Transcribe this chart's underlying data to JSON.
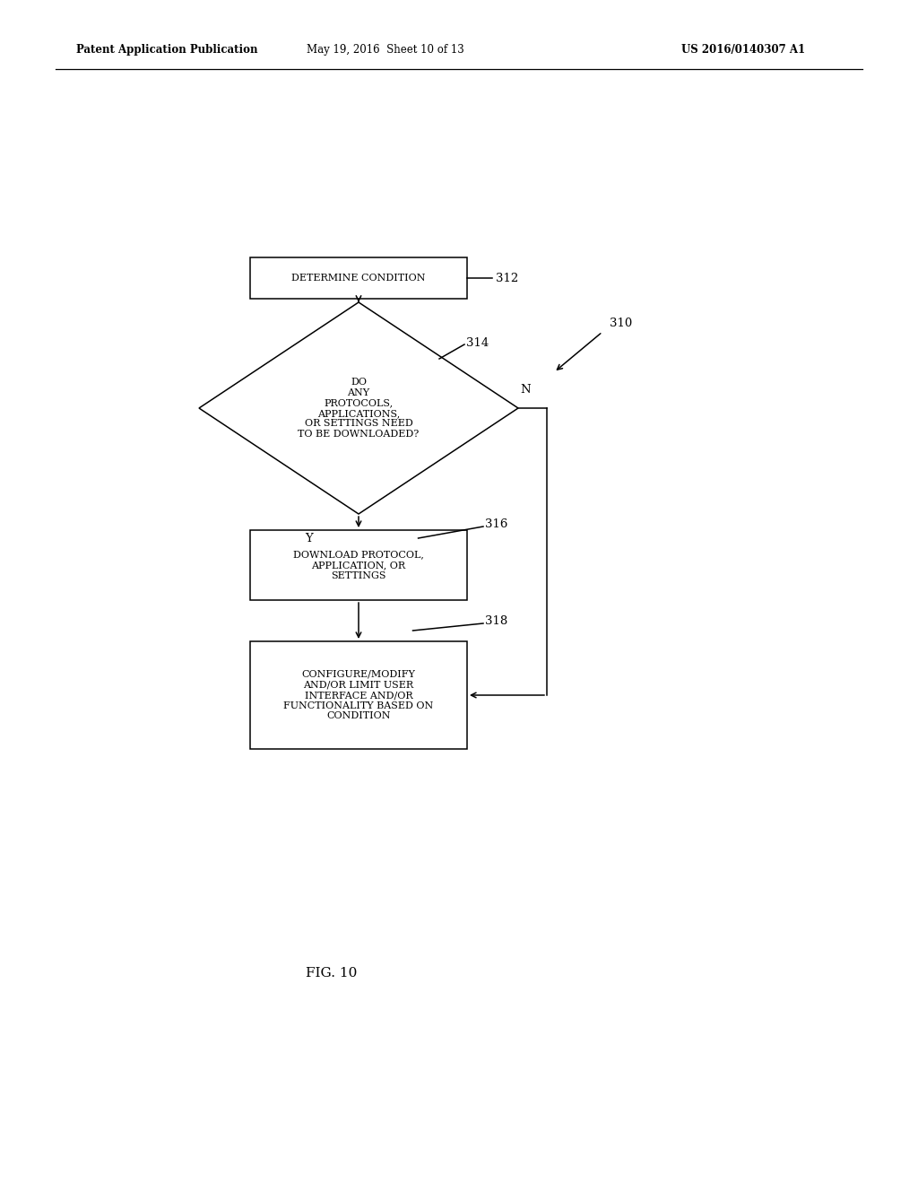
{
  "bg_color": "#ffffff",
  "header_left": "Patent Application Publication",
  "header_mid": "May 19, 2016  Sheet 10 of 13",
  "header_right": "US 2016/0140307 A1",
  "fig_label": "FIG. 10",
  "label_310": "310",
  "label_312": "312",
  "label_314": "314",
  "label_316": "316",
  "label_318": "318",
  "box1_text": "DETERMINE CONDITION",
  "diamond_text": "DO\nANY\nPROTOCOLS,\nAPPLICATIONS,\nOR SETTINGS NEED\nTO BE DOWNLOADED?",
  "box2_text": "DOWNLOAD PROTOCOL,\nAPPLICATION, OR\nSETTINGS",
  "box3_text": "CONFIGURE/MODIFY\nAND/OR LIMIT USER\nINTERFACE AND/OR\nFUNCTIONALITY BASED ON\nCONDITION",
  "yes_label": "Y",
  "no_label": "N",
  "font_size_box": 8.0,
  "font_size_label": 9.5,
  "font_size_header": 8.5,
  "font_size_fig": 11
}
